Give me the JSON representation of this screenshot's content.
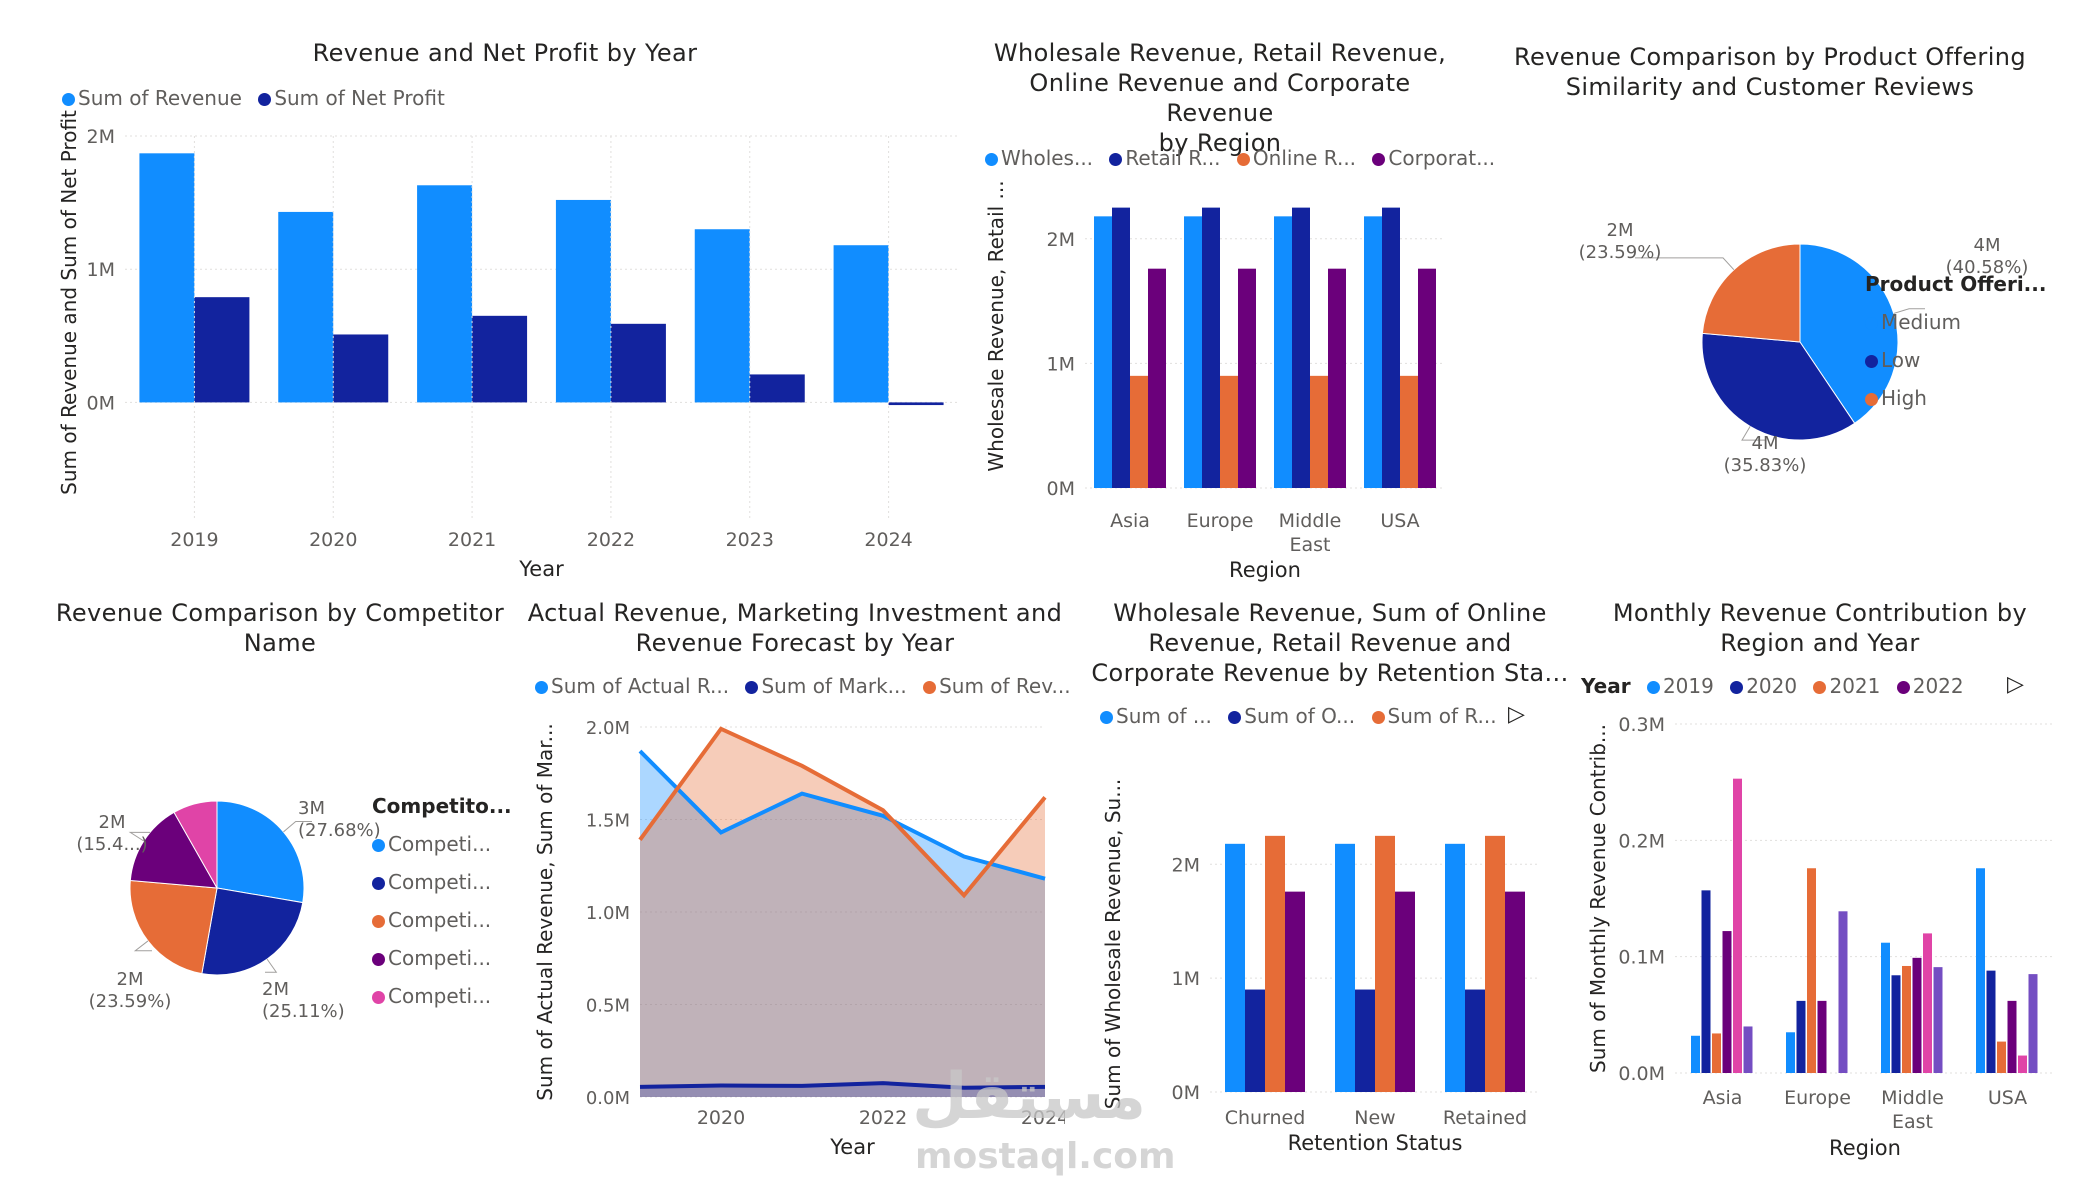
{
  "colors": {
    "blue": "#118dff",
    "navy": "#12239e",
    "orange": "#e66c37",
    "purple": "#6b007b",
    "pink": "#e044a7",
    "violet": "#744ec2",
    "text": "#252423",
    "muted": "#605e5c",
    "grid": "#e1dfdd"
  },
  "watermark": {
    "arabic": "مستقل",
    "latin": "mostaql.com"
  },
  "chart_data": [
    {
      "id": "c1",
      "type": "bar",
      "title": "Revenue and Net Profit by Year",
      "xlabel": "Year",
      "ylabel": "Sum of Revenue and Sum of Net Profit",
      "categories": [
        "2019",
        "2020",
        "2021",
        "2022",
        "2023",
        "2024"
      ],
      "series": [
        {
          "name": "Sum of Revenue",
          "color": "#118dff",
          "values": [
            1870000,
            1430000,
            1630000,
            1520000,
            1300000,
            1180000
          ]
        },
        {
          "name": "Sum of Net Profit",
          "color": "#12239e",
          "values": [
            790000,
            510000,
            650000,
            590000,
            210000,
            -20000
          ]
        }
      ],
      "ylim": [
        -500000,
        2000000
      ],
      "yticks": [
        0,
        1000000,
        2000000
      ],
      "yticklabels": [
        "0M",
        "1M",
        "2M"
      ]
    },
    {
      "id": "c2",
      "type": "bar",
      "title": "Wholesale Revenue, Retail Revenue,\nOnline Revenue and Corporate Revenue\nby Region",
      "xlabel": "Region",
      "ylabel": "Wholesale Revenue, Retail ...",
      "categories": [
        "Asia",
        "Europe",
        "Middle\nEast",
        "USA"
      ],
      "series": [
        {
          "name": "Wholes...",
          "color": "#118dff",
          "values": [
            2180000,
            2180000,
            2180000,
            2180000
          ]
        },
        {
          "name": "Retail R...",
          "color": "#12239e",
          "values": [
            2250000,
            2250000,
            2250000,
            2250000
          ]
        },
        {
          "name": "Online R...",
          "color": "#e66c37",
          "values": [
            900000,
            900000,
            900000,
            900000
          ]
        },
        {
          "name": "Corporat...",
          "color": "#6b007b",
          "values": [
            1760000,
            1760000,
            1760000,
            1760000
          ]
        }
      ],
      "ylim": [
        0,
        2600000
      ],
      "yticks": [
        0,
        1000000,
        2000000
      ],
      "yticklabels": [
        "0M",
        "1M",
        "2M"
      ]
    },
    {
      "id": "c3",
      "type": "pie",
      "title": "Revenue Comparison by Product Offering\nSimilarity and Customer Reviews",
      "legend_title": "Product Offeri...",
      "slices": [
        {
          "name": "Medium",
          "color": "#118dff",
          "value": 40.58,
          "label": "4M",
          "pct": "(40.58%)"
        },
        {
          "name": "Low",
          "color": "#12239e",
          "value": 35.83,
          "label": "4M",
          "pct": "(35.83%)"
        },
        {
          "name": "High",
          "color": "#e66c37",
          "value": 23.59,
          "label": "2M",
          "pct": "(23.59%)"
        }
      ]
    },
    {
      "id": "c4",
      "type": "pie",
      "title": "Revenue Comparison by Competitor\nName",
      "legend_title": "Competito...",
      "slices": [
        {
          "name": "Competi...",
          "color": "#118dff",
          "value": 27.68,
          "label": "3M",
          "pct": "(27.68%)"
        },
        {
          "name": "Competi...",
          "color": "#12239e",
          "value": 25.11,
          "label": "2M",
          "pct": "(25.11%)"
        },
        {
          "name": "Competi...",
          "color": "#e66c37",
          "value": 23.59,
          "label": "2M",
          "pct": "(23.59%)"
        },
        {
          "name": "Competi...",
          "color": "#6b007b",
          "value": 15.4,
          "label": "2M",
          "pct": "(15.4...)"
        },
        {
          "name": "Competi...",
          "color": "#e044a7",
          "value": 8.22,
          "label": "",
          "pct": ""
        }
      ]
    },
    {
      "id": "c5",
      "type": "area",
      "title": "Actual Revenue, Marketing Investment and\nRevenue Forecast by Year",
      "xlabel": "Year",
      "ylabel": "Sum of Actual Revenue, Sum of Mar...",
      "x": [
        2019,
        2020,
        2021,
        2022,
        2023,
        2024
      ],
      "xticks": [
        2020,
        2022,
        2024
      ],
      "series": [
        {
          "name": "Sum of Actual R...",
          "color": "#118dff",
          "values": [
            1870000,
            1430000,
            1640000,
            1520000,
            1300000,
            1180000
          ]
        },
        {
          "name": "Sum of Mark...",
          "color": "#12239e",
          "values": [
            55000,
            62000,
            60000,
            75000,
            50000,
            55000
          ]
        },
        {
          "name": "Sum of Rev...",
          "color": "#e66c37",
          "values": [
            1390000,
            1990000,
            1790000,
            1550000,
            1090000,
            1620000
          ]
        }
      ],
      "ylim": [
        0,
        2000000
      ],
      "yticks": [
        0,
        500000,
        1000000,
        1500000,
        2000000
      ],
      "yticklabels": [
        "0.0M",
        "0.5M",
        "1.0M",
        "1.5M",
        "2.0M"
      ]
    },
    {
      "id": "c6",
      "type": "bar",
      "title": "Wholesale Revenue, Sum of Online\nRevenue, Retail Revenue and\nCorporate Revenue by Retention Sta...",
      "xlabel": "Retention Status",
      "ylabel": "Sum of Wholesale Revenue, Su...",
      "categories": [
        "Churned",
        "New",
        "Retained"
      ],
      "series": [
        {
          "name": "Sum of ...",
          "color": "#118dff",
          "values": [
            2180000,
            2180000,
            2180000
          ]
        },
        {
          "name": "Sum of O...",
          "color": "#12239e",
          "values": [
            900000,
            900000,
            900000
          ]
        },
        {
          "name": "Sum of R...",
          "color": "#e66c37",
          "values": [
            2250000,
            2250000,
            2250000
          ]
        },
        {
          "name": "",
          "color": "#6b007b",
          "values": [
            1760000,
            1760000,
            1760000
          ]
        }
      ],
      "ylim": [
        0,
        2600000
      ],
      "yticks": [
        0,
        1000000,
        2000000
      ],
      "yticklabels": [
        "0M",
        "1M",
        "2M"
      ]
    },
    {
      "id": "c7",
      "type": "bar",
      "title": "Monthly Revenue Contribution by\nRegion and Year",
      "xlabel": "Region",
      "ylabel": "Sum of Monthly Revenue Contrib...",
      "legend_title": "Year",
      "categories": [
        "Asia",
        "Europe",
        "Middle\nEast",
        "USA"
      ],
      "series": [
        {
          "name": "2019",
          "color": "#118dff",
          "values": [
            32000,
            35000,
            112000,
            176000
          ]
        },
        {
          "name": "2020",
          "color": "#12239e",
          "values": [
            157000,
            62000,
            84000,
            88000
          ]
        },
        {
          "name": "2021",
          "color": "#e66c37",
          "values": [
            34000,
            176000,
            92000,
            27000
          ]
        },
        {
          "name": "2022",
          "color": "#6b007b",
          "values": [
            122000,
            62000,
            99000,
            62000
          ]
        },
        {
          "name": "",
          "color": "#e044a7",
          "values": [
            253000,
            0,
            120000,
            15000
          ]
        },
        {
          "name": "",
          "color": "#744ec2",
          "values": [
            40000,
            139000,
            91000,
            85000
          ]
        }
      ],
      "ylim": [
        0,
        300000
      ],
      "yticks": [
        0,
        100000,
        200000,
        300000
      ],
      "yticklabels": [
        "0.0M",
        "0.1M",
        "0.2M",
        "0.3M"
      ]
    }
  ]
}
